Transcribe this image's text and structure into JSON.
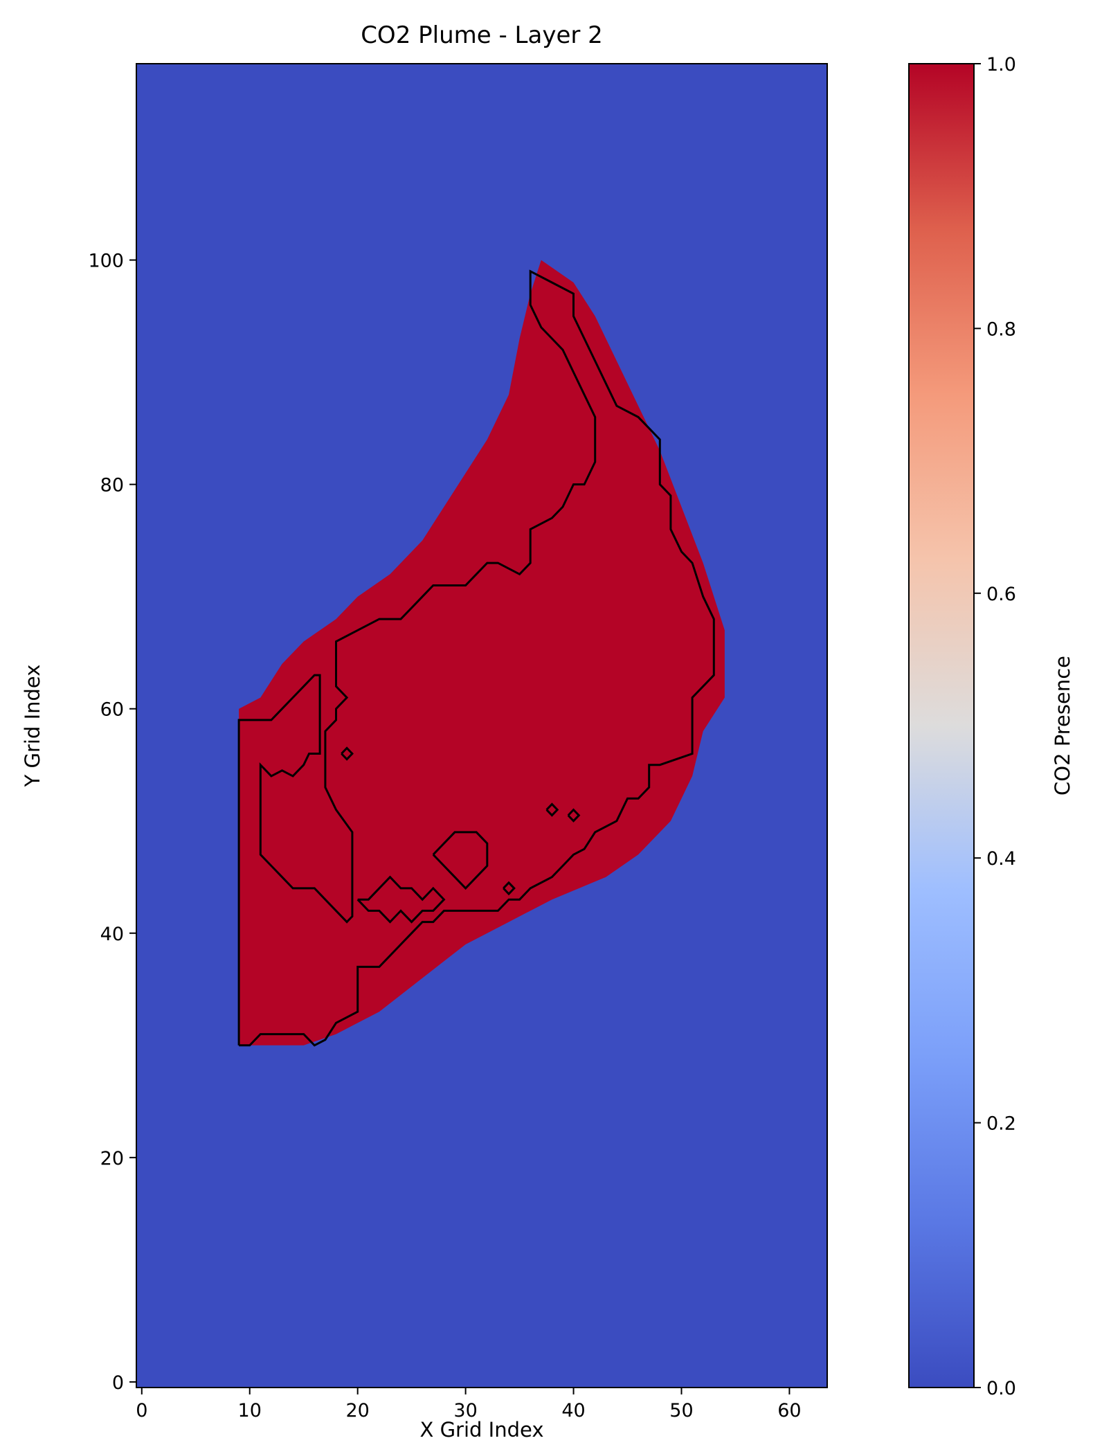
{
  "chart_data": {
    "type": "heatmap",
    "title": "CO2 Plume - Layer 2",
    "xlabel": "X Grid Index",
    "ylabel": "Y Grid Index",
    "xlim": [
      -0.5,
      63.5
    ],
    "ylim": [
      -0.5,
      117.5
    ],
    "xticks": [
      0,
      10,
      20,
      30,
      40,
      50,
      60
    ],
    "xtick_labels": [
      "0",
      "10",
      "20",
      "30",
      "40",
      "50",
      "60"
    ],
    "yticks": [
      0,
      20,
      40,
      60,
      80,
      100
    ],
    "ytick_labels": [
      "0",
      "20",
      "40",
      "60",
      "80",
      "100"
    ],
    "grid": false,
    "colormap": "coolwarm",
    "colors": {
      "absent": "#3b4cc0",
      "mid": "#dddcdc",
      "present": "#b40426",
      "contour": "#000000"
    },
    "colorbar": {
      "label": "CO2 Presence",
      "range": [
        0.0,
        1.0
      ],
      "ticks": [
        0.0,
        0.2,
        0.4,
        0.6,
        0.8,
        1.0
      ],
      "tick_labels": [
        "0.0",
        "0.2",
        "0.4",
        "0.6",
        "0.8",
        "1.0"
      ]
    },
    "plume_region_value": 1.0,
    "background_value": 0.0,
    "plume_boundary": [
      [
        9,
        30
      ],
      [
        9,
        60
      ],
      [
        11,
        61
      ],
      [
        13,
        64
      ],
      [
        15,
        66
      ],
      [
        18,
        68
      ],
      [
        20,
        70
      ],
      [
        23,
        72
      ],
      [
        26,
        75
      ],
      [
        28,
        78
      ],
      [
        30,
        81
      ],
      [
        32,
        84
      ],
      [
        34,
        88
      ],
      [
        35,
        93
      ],
      [
        36,
        97
      ],
      [
        37,
        100
      ],
      [
        40,
        98
      ],
      [
        42,
        95
      ],
      [
        44,
        91
      ],
      [
        46,
        87
      ],
      [
        48,
        83
      ],
      [
        50,
        78
      ],
      [
        52,
        73
      ],
      [
        54,
        67
      ],
      [
        54,
        61
      ],
      [
        52,
        58
      ],
      [
        51,
        54
      ],
      [
        49,
        50
      ],
      [
        46,
        47
      ],
      [
        43,
        45
      ],
      [
        38,
        43
      ],
      [
        34,
        41
      ],
      [
        30,
        39
      ],
      [
        26,
        36
      ],
      [
        22,
        33
      ],
      [
        18,
        31
      ],
      [
        15,
        30
      ]
    ],
    "contours": [
      [
        [
          9,
          30
        ],
        [
          9,
          59
        ],
        [
          12,
          59
        ],
        [
          13,
          60
        ],
        [
          14,
          61
        ],
        [
          15,
          62
        ],
        [
          16,
          63
        ],
        [
          16.5,
          63
        ],
        [
          16.5,
          56
        ],
        [
          15.5,
          56
        ],
        [
          15,
          55
        ],
        [
          14,
          54
        ],
        [
          13,
          54.5
        ],
        [
          12,
          54
        ],
        [
          11,
          55
        ],
        [
          11,
          47
        ],
        [
          12,
          46
        ],
        [
          13,
          45
        ],
        [
          14,
          44
        ],
        [
          16,
          44
        ],
        [
          17,
          43
        ],
        [
          18,
          42
        ],
        [
          19,
          41
        ],
        [
          19.5,
          41.5
        ],
        [
          19.5,
          49
        ],
        [
          18,
          51
        ],
        [
          17,
          53
        ],
        [
          17,
          58
        ],
        [
          18,
          59
        ],
        [
          18,
          60
        ],
        [
          19,
          61
        ],
        [
          18,
          62
        ],
        [
          18,
          66
        ],
        [
          20,
          67
        ],
        [
          22,
          68
        ],
        [
          24,
          68
        ],
        [
          25,
          69
        ],
        [
          26,
          70
        ],
        [
          27,
          71
        ],
        [
          30,
          71
        ],
        [
          31,
          72
        ],
        [
          32,
          73
        ],
        [
          33,
          73
        ],
        [
          35,
          72
        ],
        [
          36,
          73
        ],
        [
          36,
          76
        ],
        [
          38,
          77
        ],
        [
          39,
          78
        ],
        [
          40,
          80
        ],
        [
          41,
          80
        ],
        [
          42,
          82
        ],
        [
          42,
          86
        ],
        [
          41,
          88
        ],
        [
          40,
          90
        ],
        [
          39,
          92
        ],
        [
          37,
          94
        ],
        [
          36,
          96
        ],
        [
          36,
          99
        ],
        [
          38,
          98
        ],
        [
          40,
          97
        ],
        [
          40,
          95
        ],
        [
          41,
          93
        ],
        [
          42,
          91
        ],
        [
          43,
          89
        ],
        [
          44,
          87
        ],
        [
          46,
          86
        ],
        [
          47,
          85
        ],
        [
          48,
          84
        ],
        [
          48,
          80
        ],
        [
          49,
          79
        ],
        [
          49,
          76
        ],
        [
          50,
          74
        ],
        [
          51,
          73
        ],
        [
          52,
          70
        ],
        [
          53,
          68
        ],
        [
          53,
          63
        ],
        [
          52,
          62
        ],
        [
          51,
          61
        ],
        [
          51,
          56
        ],
        [
          48,
          55
        ],
        [
          47,
          55
        ],
        [
          47,
          53
        ],
        [
          46,
          52
        ],
        [
          45,
          52
        ],
        [
          44,
          50
        ],
        [
          42,
          49
        ],
        [
          41,
          47.5
        ],
        [
          40,
          47
        ],
        [
          39,
          46
        ],
        [
          38,
          45
        ],
        [
          36,
          44
        ],
        [
          35,
          43
        ],
        [
          34,
          43
        ],
        [
          33,
          42
        ],
        [
          32,
          42
        ],
        [
          31,
          42
        ],
        [
          30,
          42
        ],
        [
          28,
          42
        ],
        [
          27,
          41
        ],
        [
          26,
          41
        ],
        [
          25,
          40
        ],
        [
          24,
          39
        ],
        [
          23,
          38
        ],
        [
          22,
          37
        ],
        [
          21,
          37
        ],
        [
          20,
          37
        ],
        [
          20,
          33
        ],
        [
          18,
          32
        ],
        [
          17,
          30.5
        ],
        [
          16,
          30
        ],
        [
          15,
          31
        ],
        [
          13,
          31
        ],
        [
          11,
          31
        ],
        [
          10,
          30
        ],
        [
          9,
          30
        ]
      ],
      [
        [
          18.5,
          56
        ],
        [
          19,
          56.5
        ],
        [
          19.5,
          56
        ],
        [
          19,
          55.5
        ],
        [
          18.5,
          56
        ]
      ],
      [
        [
          20,
          43
        ],
        [
          21,
          42
        ],
        [
          22,
          42
        ],
        [
          23,
          41
        ],
        [
          24,
          42
        ],
        [
          25,
          41
        ],
        [
          26,
          42
        ],
        [
          27,
          42
        ],
        [
          28,
          43
        ],
        [
          27,
          44
        ],
        [
          26,
          43
        ],
        [
          25,
          44
        ],
        [
          24,
          44
        ],
        [
          23,
          45
        ],
        [
          22,
          44
        ],
        [
          21,
          43
        ],
        [
          20,
          43
        ]
      ],
      [
        [
          27,
          47
        ],
        [
          28,
          48
        ],
        [
          29,
          49
        ],
        [
          31,
          49
        ],
        [
          32,
          48
        ],
        [
          32,
          46
        ],
        [
          31,
          45
        ],
        [
          30,
          44
        ],
        [
          29,
          45
        ],
        [
          28,
          46
        ],
        [
          27,
          47
        ]
      ],
      [
        [
          33.5,
          44
        ],
        [
          34,
          44.5
        ],
        [
          34.5,
          44
        ],
        [
          34,
          43.5
        ],
        [
          33.5,
          44
        ]
      ],
      [
        [
          37.5,
          51
        ],
        [
          38,
          51.5
        ],
        [
          38.5,
          51
        ],
        [
          38,
          50.5
        ],
        [
          37.5,
          51
        ]
      ],
      [
        [
          39.5,
          50.5
        ],
        [
          40,
          51
        ],
        [
          40.5,
          50.5
        ],
        [
          40,
          50
        ],
        [
          39.5,
          50.5
        ]
      ]
    ]
  }
}
